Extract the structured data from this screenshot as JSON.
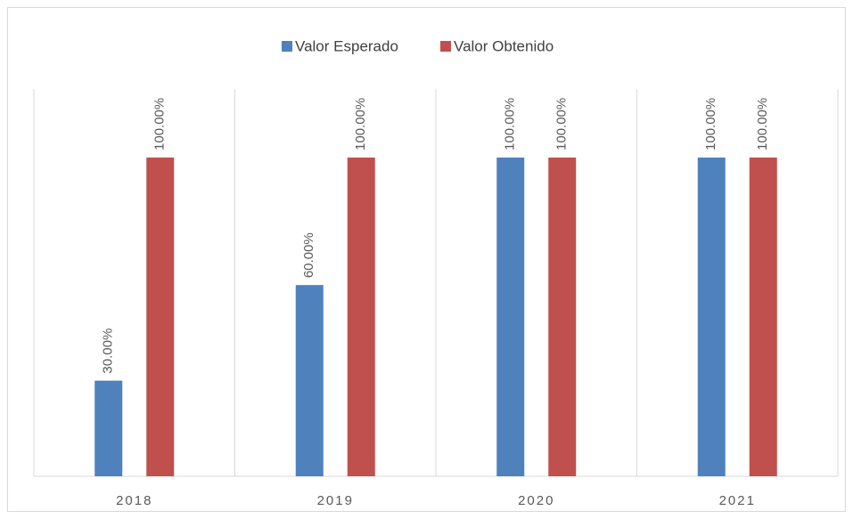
{
  "chart_data": {
    "type": "bar",
    "categories": [
      "2018",
      "2019",
      "2020",
      "2021"
    ],
    "series": [
      {
        "name": "Valor Esperado",
        "color": "#4f81bd",
        "values": [
          30,
          60,
          100,
          100
        ],
        "value_labels": [
          "30.00%",
          "60.00%",
          "100.00%",
          "100.00%"
        ]
      },
      {
        "name": "Valor Obtenido",
        "color": "#c0504d",
        "values": [
          100,
          100,
          100,
          100
        ],
        "value_labels": [
          "100.00%",
          "100.00%",
          "100.00%",
          "100.00%"
        ]
      }
    ],
    "ylim": [
      0,
      121.5
    ],
    "legend": "top"
  }
}
